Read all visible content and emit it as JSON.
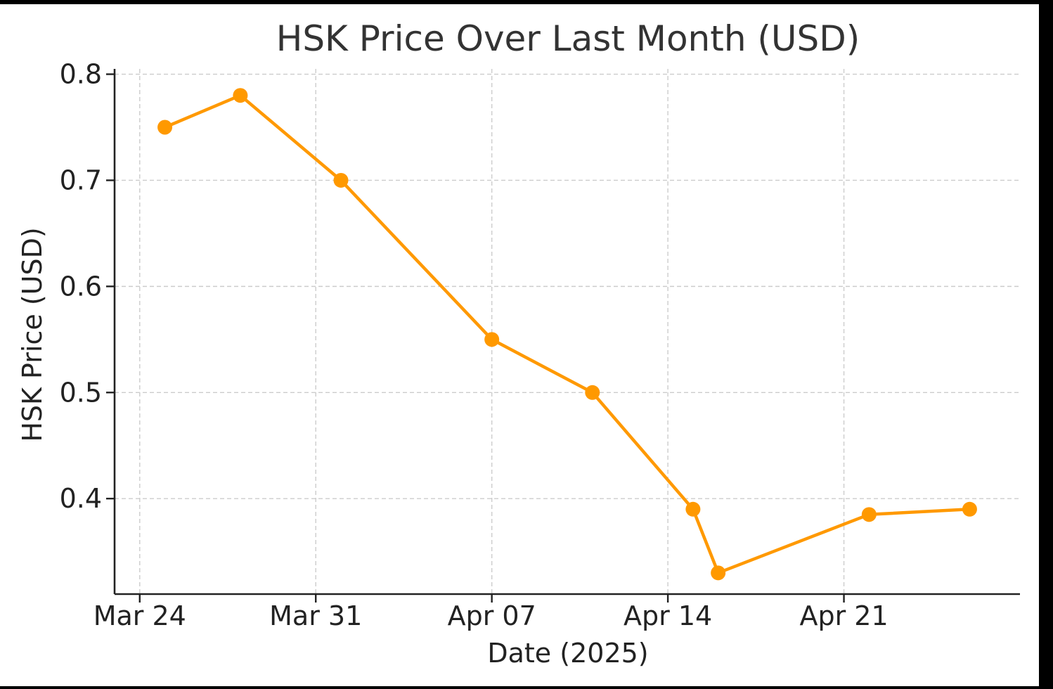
{
  "chart_data": {
    "type": "line",
    "title": "HSK Price Over Last Month (USD)",
    "xlabel": "Date (2025)",
    "ylabel": "HSK Price (USD)",
    "x_ticks": [
      "Mar 24",
      "Mar 31",
      "Apr 07",
      "Apr 14",
      "Apr 21"
    ],
    "x_tick_dates": [
      "2025-03-24",
      "2025-03-31",
      "2025-04-07",
      "2025-04-14",
      "2025-04-21"
    ],
    "y_ticks": [
      "0.4",
      "0.5",
      "0.6",
      "0.7",
      "0.8"
    ],
    "y_tick_values": [
      0.4,
      0.5,
      0.6,
      0.7,
      0.8
    ],
    "xlim": [
      "2025-03-23",
      "2025-04-28"
    ],
    "ylim": [
      0.31,
      0.805
    ],
    "grid": true,
    "series": [
      {
        "color": "#ff9900",
        "marker": "circle",
        "points": [
          {
            "x": "2025-03-25",
            "y": 0.75
          },
          {
            "x": "2025-03-28",
            "y": 0.78
          },
          {
            "x": "2025-04-01",
            "y": 0.7
          },
          {
            "x": "2025-04-07",
            "y": 0.55
          },
          {
            "x": "2025-04-11",
            "y": 0.5
          },
          {
            "x": "2025-04-15",
            "y": 0.39
          },
          {
            "x": "2025-04-16",
            "y": 0.33
          },
          {
            "x": "2025-04-22",
            "y": 0.385
          },
          {
            "x": "2025-04-26",
            "y": 0.39
          }
        ]
      }
    ]
  }
}
